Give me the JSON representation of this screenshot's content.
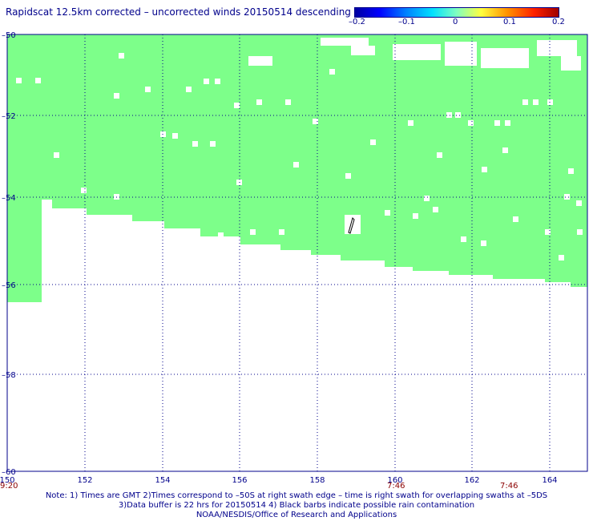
{
  "title": "Rapidscat 12.5km corrected – uncorrected winds 20150514 descending",
  "colorbar": {
    "ticks": [
      "–0.2",
      "–0.1",
      "0",
      "0.1",
      "0.2"
    ],
    "colors": [
      "#0000a0",
      "#0000ff",
      "#00e0ff",
      "#80ffc0",
      "#ffff40",
      "#ff9000",
      "#a00000"
    ]
  },
  "map": {
    "lon_range": [
      150,
      165
    ],
    "lat_range": [
      -50,
      -60
    ],
    "x_ticks": [
      "150",
      "152",
      "154",
      "156",
      "158",
      "160",
      "162",
      "164"
    ],
    "y_ticks": [
      "–50",
      "–52",
      "–54",
      "–56",
      "–58",
      "–60"
    ],
    "swath_color": "#7dff8a",
    "grid": "dotted",
    "time_labels": [
      "9:20",
      "7:46",
      "7:46"
    ]
  },
  "notes": [
    "Note: 1) Times are GMT 2)Times correspond to –50S at right swath edge – time is right swath for overlapping swaths at –5DS",
    "3)Data buffer is 22 hrs for 20150514 4) Black barbs indicate possible rain contamination",
    "NOAA/NESDIS/Office of Research and Applications"
  ]
}
